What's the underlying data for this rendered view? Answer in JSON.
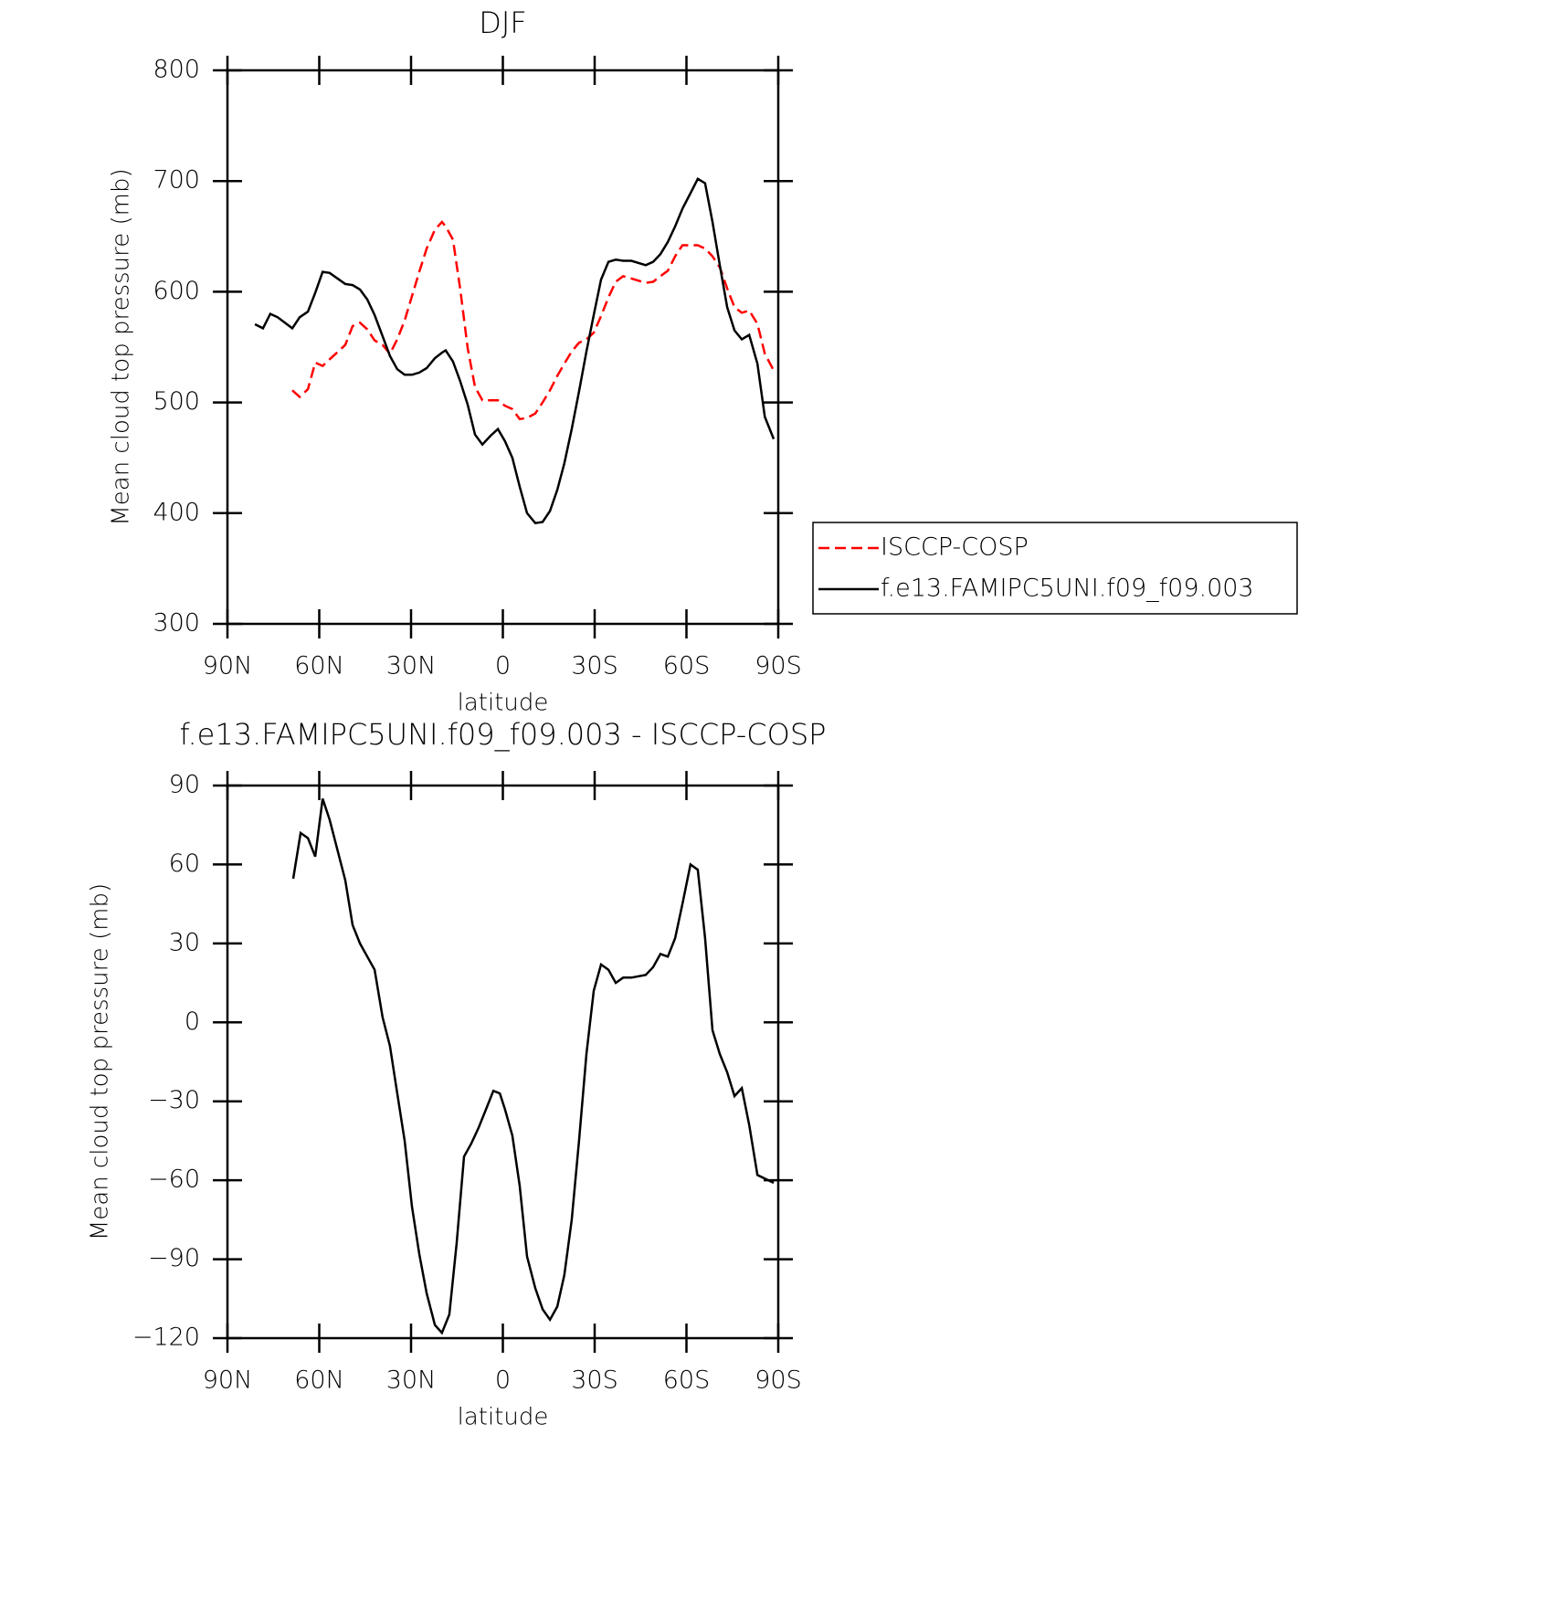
{
  "chart_data": [
    {
      "type": "line",
      "title": "DJF",
      "xlabel": "latitude",
      "ylabel": "Mean cloud top pressure (mb)",
      "xlim": [
        90,
        -90
      ],
      "xticks": [
        {
          "value": 90,
          "label": "90N"
        },
        {
          "value": 60,
          "label": "60N"
        },
        {
          "value": 30,
          "label": "30N"
        },
        0,
        {
          "value": -30,
          "label": "30S"
        },
        {
          "value": -60,
          "label": "60S"
        },
        {
          "value": -90,
          "label": "90S"
        }
      ],
      "ylim": [
        300,
        800
      ],
      "yticks": [
        300,
        400,
        500,
        600,
        700,
        800
      ],
      "series": [
        {
          "name": "ISCCP-COSP",
          "color": "#ff0000",
          "dash": true,
          "x": [
            68.8,
            66.4,
            63.7,
            61.3,
            58.9,
            56.6,
            54.2,
            51.5,
            49.1,
            46.7,
            44.3,
            41.9,
            39.3,
            36.9,
            34.5,
            32.1,
            29.7,
            27.3,
            24.9,
            22.2,
            19.9,
            18.7,
            16.3,
            13.9,
            11.5,
            9.1,
            6.7,
            4.0,
            1.6,
            -0.7,
            -3.1,
            -5.5,
            -7.9,
            -10.6,
            -13.0,
            -15.4,
            -17.8,
            -20.1,
            -22.5,
            -24.9,
            -27.3,
            -29.7,
            -32.1,
            -34.5,
            -36.9,
            -39.3,
            -42.0,
            -46.7,
            -49.1,
            -51.5,
            -53.9,
            -56.3,
            -58.7,
            -61.3,
            -63.7,
            -66.1,
            -68.5,
            -70.9,
            -73.3,
            -75.7,
            -78.1,
            -80.5,
            -83.2,
            -85.6,
            -88.5
          ],
          "values": [
            511,
            505,
            512,
            536,
            533,
            539,
            545,
            552,
            569,
            572,
            566,
            556,
            552,
            544,
            557,
            574,
            596,
            618,
            639,
            656,
            663,
            659,
            647,
            602,
            549,
            514,
            502,
            502,
            502,
            497,
            494,
            485,
            486,
            490,
            500,
            511,
            524,
            535,
            546,
            554,
            557,
            563,
            578,
            595,
            609,
            614,
            612,
            608,
            609,
            614,
            619,
            632,
            642,
            642,
            642,
            639,
            632,
            622,
            603,
            586,
            581,
            583,
            571,
            544,
            529
          ]
        },
        {
          "name": "f.e13.FAMIPC5UNI.f09_f09.003",
          "color": "#000000",
          "dash": false,
          "x": [
            81,
            78.4,
            76,
            73.6,
            68.8,
            66.4,
            63.7,
            61.3,
            58.9,
            56.6,
            51.5,
            49.1,
            46.7,
            44.3,
            41.9,
            39.3,
            36.9,
            34.5,
            32.1,
            29.7,
            27.3,
            24.9,
            22.2,
            19.9,
            18.7,
            16.3,
            13.9,
            11.5,
            9.1,
            6.7,
            4.0,
            1.6,
            -0.7,
            -3.1,
            -5.5,
            -7.9,
            -10.6,
            -13.0,
            -15.4,
            -17.8,
            -20.1,
            -22.5,
            -24.9,
            -27.3,
            -29.7,
            -32.1,
            -34.5,
            -36.9,
            -39.3,
            -42.0,
            -46.7,
            -49.1,
            -51.5,
            -53.9,
            -56.3,
            -58.7,
            -61.3,
            -63.7,
            -66.1,
            -68.5,
            -70.9,
            -73.3,
            -75.7,
            -78.1,
            -80.5,
            -83.2,
            -85.6,
            -88.5
          ],
          "values": [
            570.6,
            567,
            580,
            577,
            567,
            577,
            582,
            599,
            618,
            617,
            607,
            606,
            602,
            593,
            579,
            560,
            542,
            530,
            525,
            525,
            527,
            531,
            540,
            545,
            547,
            537,
            519,
            498,
            471,
            462,
            470,
            476,
            465,
            450,
            424,
            400,
            391,
            392,
            402,
            421,
            445,
            476,
            510,
            546,
            579,
            611,
            627,
            629,
            628,
            628,
            624,
            627,
            634,
            645,
            659,
            675,
            689,
            702,
            698,
            663,
            624,
            586,
            565,
            557,
            561,
            535,
            487,
            467
          ]
        }
      ]
    },
    {
      "type": "line",
      "title": "f.e13.FAMIPC5UNI.f09_f09.003 - ISCCP-COSP",
      "xlabel": "latitude",
      "ylabel": "Mean cloud top pressure (mb)",
      "xlim": [
        90,
        -90
      ],
      "xticks": [
        {
          "value": 90,
          "label": "90N"
        },
        {
          "value": 60,
          "label": "60N"
        },
        {
          "value": 30,
          "label": "30N"
        },
        0,
        {
          "value": -30,
          "label": "30S"
        },
        {
          "value": -60,
          "label": "60S"
        },
        {
          "value": -90,
          "label": "90S"
        }
      ],
      "ylim": [
        -120,
        90
      ],
      "yticks": [
        {
          "value": -120,
          "label": "−120"
        },
        {
          "value": -90,
          "label": "−90"
        },
        {
          "value": -60,
          "label": "−60"
        },
        {
          "value": -30,
          "label": "−30"
        },
        0,
        30,
        60,
        90
      ],
      "series": [
        {
          "color": "#000000",
          "x": [
            68.5,
            66.1,
            63.7,
            61.3,
            58.9,
            56.6,
            51.5,
            49.1,
            46.7,
            44.3,
            41.9,
            39.3,
            36.9,
            34.5,
            32.1,
            29.7,
            27.3,
            24.9,
            22.2,
            19.9,
            17.5,
            15.1,
            12.7,
            10.3,
            7.9,
            5.5,
            3.1,
            1.0,
            -0.7,
            -3.1,
            -5.5,
            -7.9,
            -10.6,
            -13.0,
            -15.4,
            -17.8,
            -20.1,
            -22.5,
            -24.9,
            -27.3,
            -29.7,
            -32.1,
            -34.5,
            -36.9,
            -39.3,
            -42.0,
            -46.7,
            -49.1,
            -51.5,
            -53.9,
            -56.3,
            -58.7,
            -61.3,
            -63.7,
            -66.1,
            -68.5,
            -70.9,
            -73.3,
            -75.7,
            -78.1,
            -80.5,
            -83.2,
            -88.5
          ],
          "values": [
            54.6,
            72,
            70,
            63,
            85,
            77,
            54,
            37,
            30,
            25,
            20,
            2,
            -9,
            -27,
            -45,
            -70,
            -88,
            -103,
            -115,
            -118,
            -111,
            -84,
            -51,
            -46,
            -40,
            -33,
            -26,
            -27,
            -33,
            -43,
            -62,
            -89,
            -101,
            -109,
            -113,
            -108,
            -96,
            -75,
            -45,
            -12,
            12,
            22,
            20,
            15,
            17,
            17,
            18,
            21,
            26,
            25,
            32,
            45,
            60,
            58,
            32,
            -3,
            -12,
            -19,
            -28,
            -25,
            -39,
            -58,
            -61
          ]
        }
      ]
    }
  ]
}
